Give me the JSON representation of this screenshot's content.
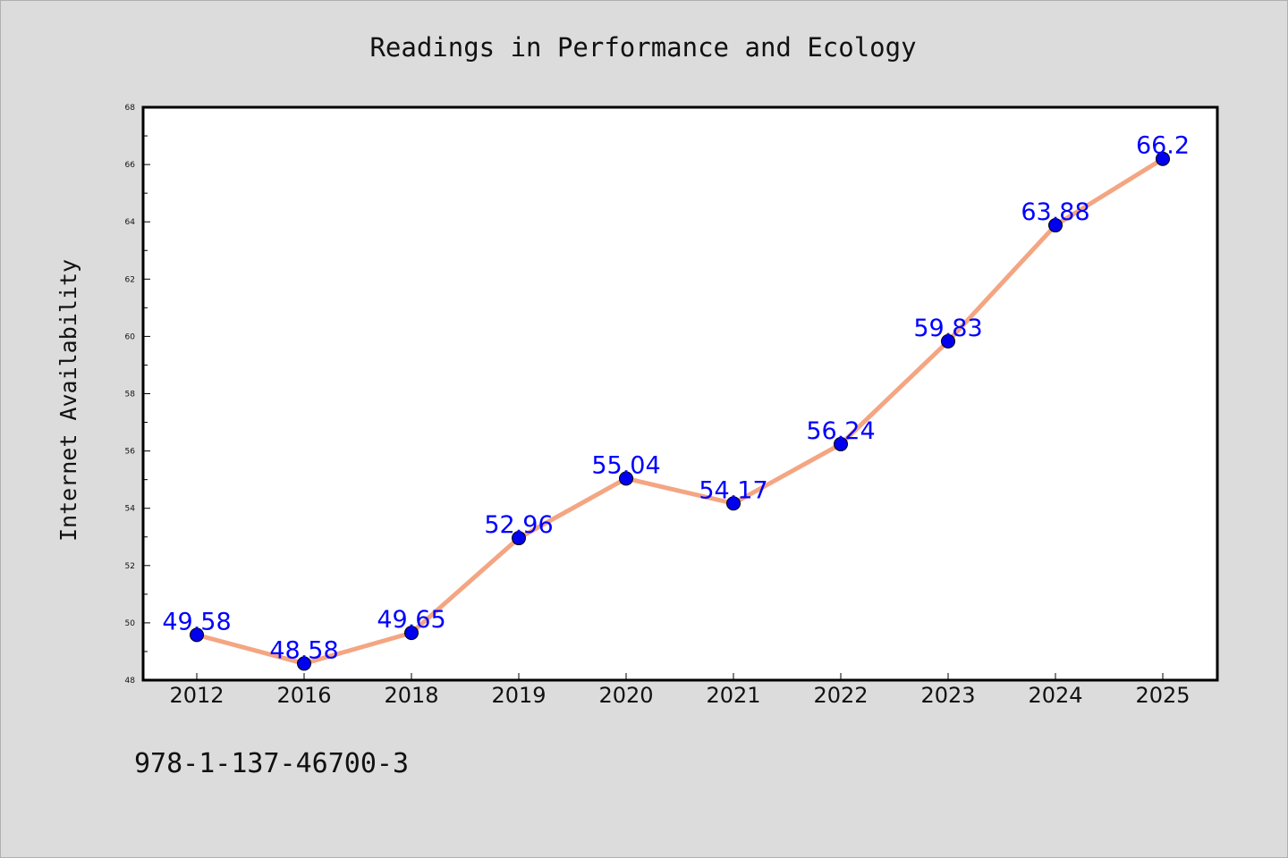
{
  "chart_data": {
    "type": "line",
    "title": "Readings in Performance and Ecology",
    "xlabel": "",
    "ylabel": "Internet Availability",
    "categories": [
      "2012",
      "2016",
      "2018",
      "2019",
      "2020",
      "2021",
      "2022",
      "2023",
      "2024",
      "2025"
    ],
    "values": [
      49.58,
      48.58,
      49.65,
      52.96,
      55.04,
      54.17,
      56.24,
      59.83,
      63.88,
      66.2
    ],
    "data_labels": [
      "49.58",
      "48.58",
      "49.65",
      "52.96",
      "55.04",
      "54.17",
      "56.24",
      "59.83",
      "63.88",
      "66.2"
    ],
    "ylim": [
      48,
      68
    ],
    "yticks": [
      "48",
      "50",
      "52",
      "54",
      "56",
      "58",
      "60",
      "62",
      "64",
      "66",
      "68"
    ],
    "grid": false,
    "line_color": "#f4a582",
    "marker_color": "#0000ee",
    "label_color": "#0000ff"
  },
  "footer_text": "978-1-137-46700-3"
}
